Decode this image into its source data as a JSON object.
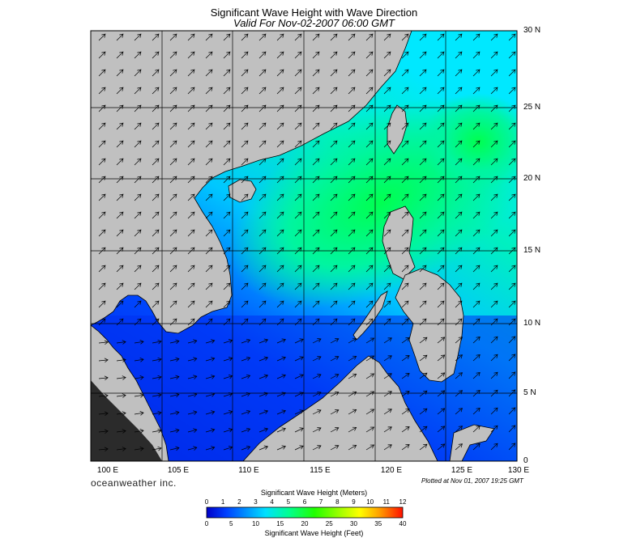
{
  "map": {
    "title": "Significant Wave Height with Wave Direction",
    "subtitle": "Valid For Nov-02-2007 06:00 GMT",
    "lat_labels": [
      "30 N",
      "25 N",
      "20 N",
      "15 N",
      "10 N",
      "5 N",
      "0"
    ],
    "lon_labels": [
      "100 E",
      "105 E",
      "110 E",
      "115 E",
      "120 E",
      "125 E",
      "130 E"
    ],
    "brand": "oceanweather inc.",
    "plotted": "Plotted at Nov 01, 2007 19:25 GMT",
    "colors": {
      "land": "#c0c0c0",
      "grid": "#000000"
    }
  },
  "colorbar": {
    "title_meters": "Significant Wave Height (Meters)",
    "title_feet": "Significant Wave Height (Feet)",
    "meter_ticks": [
      "0",
      "1",
      "2",
      "3",
      "4",
      "5",
      "6",
      "7",
      "8",
      "9",
      "10",
      "11",
      "12"
    ],
    "feet_ticks": [
      "0",
      "5",
      "10",
      "15",
      "20",
      "25",
      "30",
      "35",
      "40"
    ],
    "colors": [
      "#0000c8",
      "#0030ff",
      "#0070ff",
      "#00b0ff",
      "#00e0ff",
      "#00ffa0",
      "#00ff40",
      "#40ff00",
      "#a0ff00",
      "#ffff00",
      "#ffc000",
      "#ff6000",
      "#ff1000"
    ]
  }
}
